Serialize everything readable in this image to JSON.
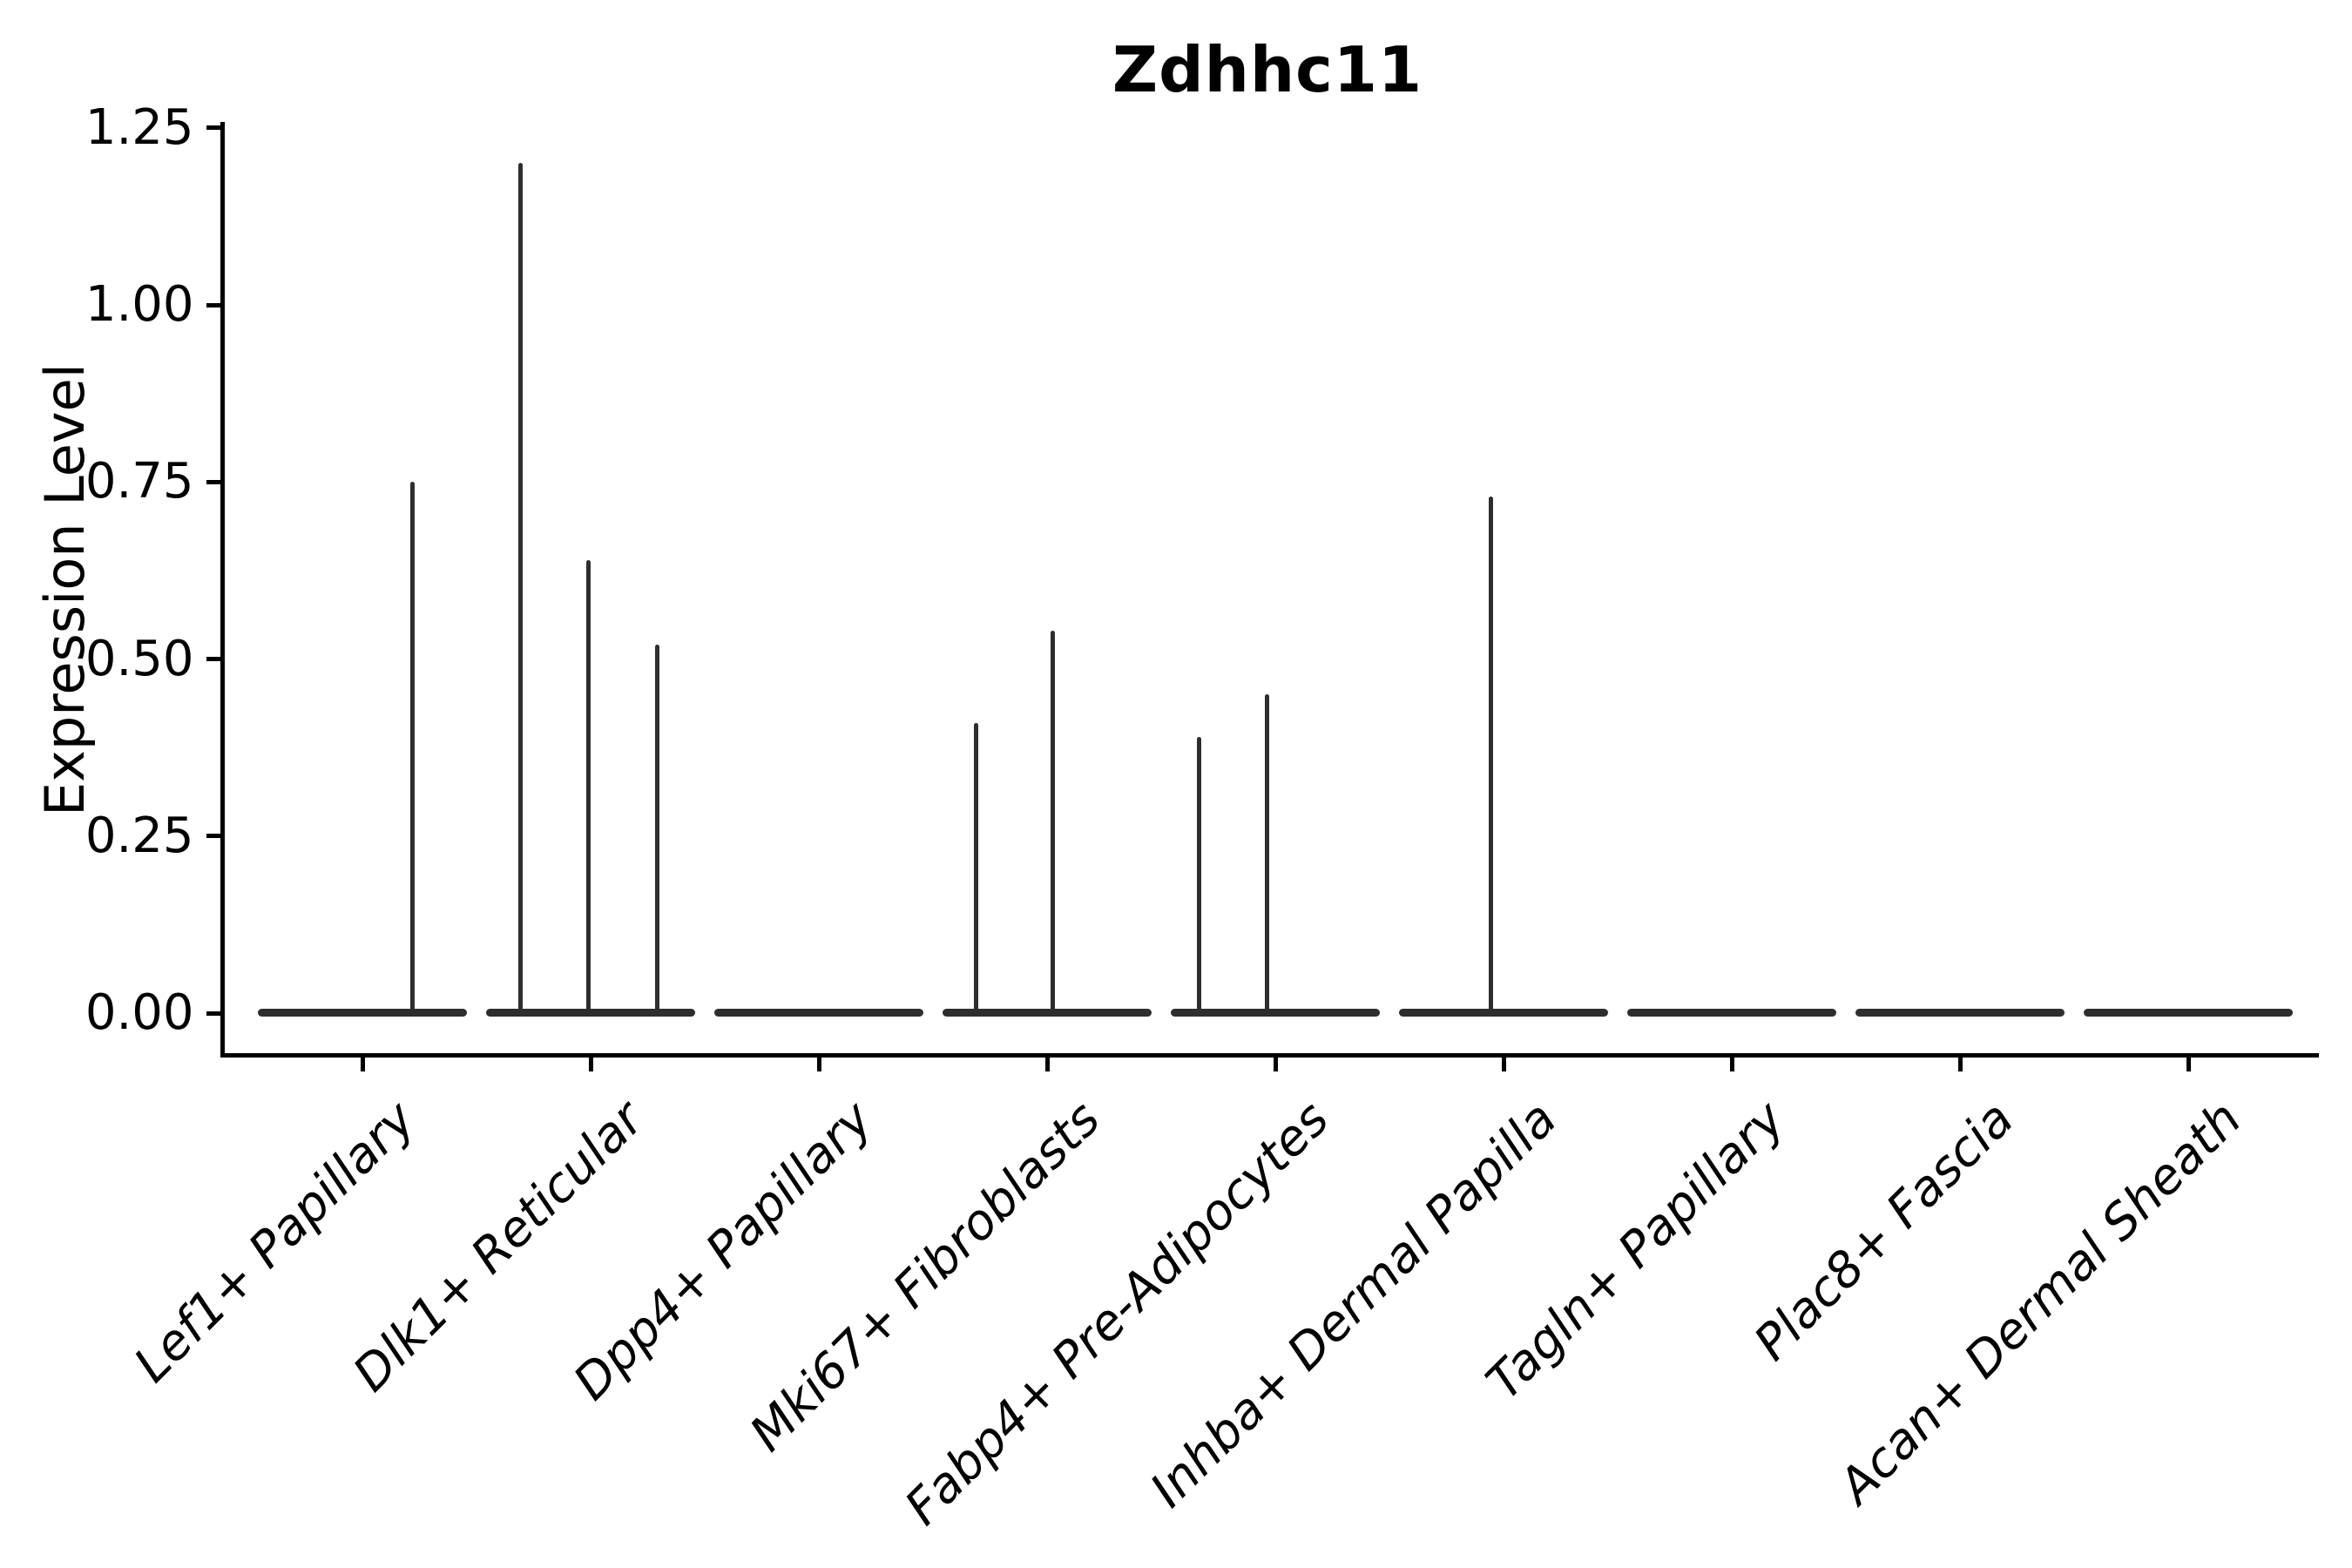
{
  "figure": {
    "background_color": "#ffffff",
    "axis_color": "#000000",
    "violin_color": "#2e2e2e"
  },
  "chart_data": {
    "type": "violin",
    "title": "Zdhhc11",
    "xlabel": "",
    "ylabel": "Expression Level",
    "ylim": [
      0,
      1.25
    ],
    "grid": false,
    "legend": "none",
    "ytick_labels": [
      "0.00",
      "0.25",
      "0.50",
      "0.75",
      "1.00",
      "1.25"
    ],
    "ytick_values": [
      0.0,
      0.25,
      0.5,
      0.75,
      1.0,
      1.25
    ],
    "categories": [
      "Lef1+ Papillary",
      "Dlk1+ Reticular",
      "Dpp4+ Papillary",
      "Mki67+ Fibroblasts",
      "Fabp4+ Pre-Adipocytes",
      "Inhba+ Dermal Papilla",
      "Tagln+ Papillary",
      "Plac8+ Fascia",
      "Acan+ Dermal Sheath"
    ],
    "series": [
      {
        "category": "Lef1+ Papillary",
        "baseline_value": 0,
        "spikes": [
          {
            "offset": 0.48,
            "value": 0.75
          }
        ]
      },
      {
        "category": "Dlk1+ Reticular",
        "baseline_value": 0,
        "spikes": [
          {
            "offset": -0.67,
            "value": 1.2
          },
          {
            "offset": -0.02,
            "value": 0.64
          },
          {
            "offset": 0.64,
            "value": 0.52
          }
        ]
      },
      {
        "category": "Dpp4+ Papillary",
        "baseline_value": 0,
        "spikes": []
      },
      {
        "category": "Mki67+ Fibroblasts",
        "baseline_value": 0,
        "spikes": [
          {
            "offset": -0.68,
            "value": 0.41
          },
          {
            "offset": 0.05,
            "value": 0.54
          }
        ]
      },
      {
        "category": "Fabp4+ Pre-Adipocytes",
        "baseline_value": 0,
        "spikes": [
          {
            "offset": -0.73,
            "value": 0.39
          },
          {
            "offset": -0.08,
            "value": 0.45
          }
        ]
      },
      {
        "category": "Inhba+ Dermal Papilla",
        "baseline_value": 0,
        "spikes": [
          {
            "offset": -0.12,
            "value": 0.73
          }
        ]
      },
      {
        "category": "Tagln+ Papillary",
        "baseline_value": 0,
        "spikes": []
      },
      {
        "category": "Plac8+ Fascia",
        "baseline_value": 0,
        "spikes": []
      },
      {
        "category": "Acan+ Dermal Sheath",
        "baseline_value": 0,
        "spikes": []
      }
    ]
  }
}
